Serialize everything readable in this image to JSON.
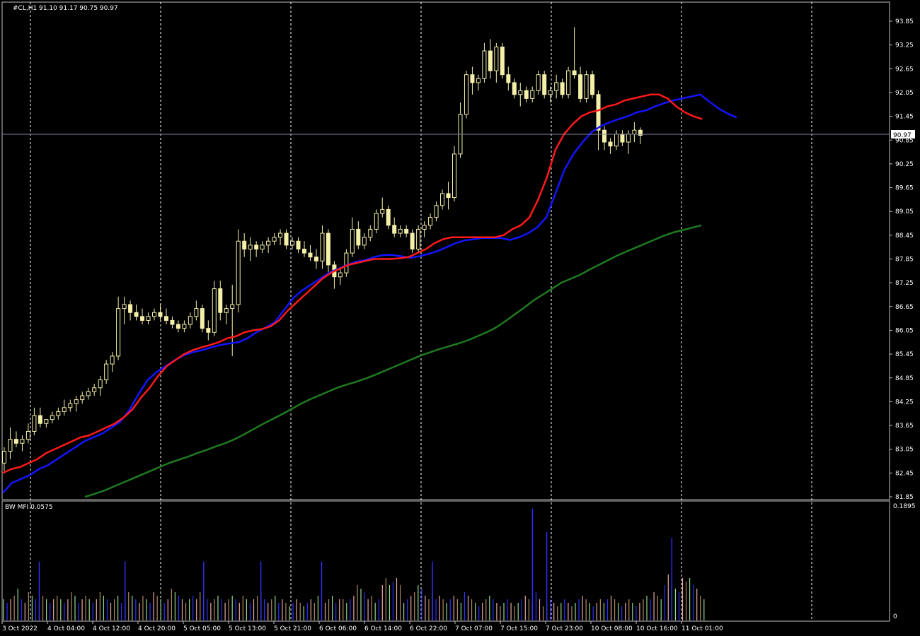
{
  "chart": {
    "header_text": "#CL,H1  91.10 91.17 90.75 90.97",
    "last_price_label": "90.97",
    "last_price": 90.97,
    "price_axis": {
      "ticks": [
        "93.85",
        "93.25",
        "92.65",
        "92.05",
        "91.45",
        "90.85",
        "90.25",
        "89.65",
        "89.05",
        "88.45",
        "87.85",
        "87.25",
        "86.65",
        "86.05",
        "85.45",
        "84.85",
        "84.25",
        "83.65",
        "83.05",
        "82.45",
        "81.85"
      ],
      "range": [
        81.85,
        93.85
      ]
    },
    "time_axis": {
      "labels": [
        "3 Oct 2022",
        "4 Oct 04:00",
        "4 Oct 12:00",
        "4 Oct 20:00",
        "5 Oct 05:00",
        "5 Oct 13:00",
        "5 Oct 21:00",
        "6 Oct 06:00",
        "6 Oct 14:00",
        "6 Oct 22:00",
        "7 Oct 07:00",
        "7 Oct 15:00",
        "7 Oct 23:00",
        "10 Oct 08:00",
        "10 Oct 16:00",
        "11 Oct 01:00"
      ]
    },
    "indicator": {
      "header_text": "BW MFI 0.0575",
      "max_label": "0.1895",
      "zero_label": "0",
      "max": 0.1895
    },
    "colors": {
      "background": "#000000",
      "candle": "#f5f0a8",
      "ma_fast": "#ff1a1a",
      "ma_mid": "#1414ff",
      "ma_slow": "#1f7a1f",
      "grid": "#ffffff",
      "axis": "#c0c0c0",
      "mfi_green": "#8fd98f",
      "mfi_blue": "#3030ff",
      "mfi_pink": "#e8a9a0",
      "mfi_brown": "#b08860"
    }
  },
  "chart_data": {
    "type": "candlestick",
    "symbol": "#CL",
    "timeframe": "H1",
    "ylim": [
      81.85,
      93.85
    ],
    "ohlc": [
      [
        82.7,
        83.1,
        82.5,
        83.0
      ],
      [
        83.0,
        83.6,
        82.8,
        83.3
      ],
      [
        83.3,
        83.5,
        83.1,
        83.2
      ],
      [
        83.2,
        83.4,
        83.0,
        83.3
      ],
      [
        83.3,
        83.7,
        83.2,
        83.5
      ],
      [
        83.5,
        84.1,
        83.4,
        83.9
      ],
      [
        83.9,
        84.1,
        83.6,
        83.7
      ],
      [
        83.7,
        83.8,
        83.6,
        83.8
      ],
      [
        83.8,
        84.0,
        83.7,
        83.9
      ],
      [
        83.9,
        84.1,
        83.8,
        84.0
      ],
      [
        84.0,
        84.3,
        83.9,
        84.1
      ],
      [
        84.1,
        84.3,
        84.0,
        84.2
      ],
      [
        84.2,
        84.4,
        84.0,
        84.3
      ],
      [
        84.3,
        84.5,
        84.2,
        84.4
      ],
      [
        84.4,
        84.6,
        84.3,
        84.5
      ],
      [
        84.5,
        84.7,
        84.4,
        84.6
      ],
      [
        84.6,
        84.9,
        84.4,
        84.8
      ],
      [
        84.8,
        85.3,
        84.7,
        85.2
      ],
      [
        85.2,
        85.5,
        85.0,
        85.4
      ],
      [
        85.4,
        86.9,
        85.3,
        86.6
      ],
      [
        86.6,
        86.9,
        86.2,
        86.7
      ],
      [
        86.7,
        86.8,
        86.3,
        86.5
      ],
      [
        86.5,
        86.7,
        86.3,
        86.4
      ],
      [
        86.4,
        86.6,
        86.2,
        86.3
      ],
      [
        86.3,
        86.5,
        86.2,
        86.4
      ],
      [
        86.4,
        86.6,
        86.3,
        86.5
      ],
      [
        86.5,
        86.7,
        86.3,
        86.4
      ],
      [
        86.4,
        86.6,
        86.2,
        86.3
      ],
      [
        86.3,
        86.4,
        86.1,
        86.2
      ],
      [
        86.2,
        86.3,
        86.0,
        86.1
      ],
      [
        86.1,
        86.3,
        86.0,
        86.2
      ],
      [
        86.2,
        86.5,
        86.1,
        86.4
      ],
      [
        86.4,
        86.8,
        86.3,
        86.6
      ],
      [
        86.6,
        86.7,
        86.0,
        86.1
      ],
      [
        86.1,
        86.3,
        85.8,
        86.0
      ],
      [
        86.0,
        87.3,
        85.9,
        87.1
      ],
      [
        87.1,
        87.3,
        86.3,
        86.5
      ],
      [
        86.5,
        86.7,
        86.2,
        86.6
      ],
      [
        86.6,
        87.2,
        85.4,
        86.7
      ],
      [
        86.7,
        88.6,
        86.5,
        88.3
      ],
      [
        88.3,
        88.5,
        87.9,
        88.1
      ],
      [
        88.1,
        88.4,
        87.8,
        88.2
      ],
      [
        88.2,
        88.3,
        87.9,
        88.1
      ],
      [
        88.1,
        88.3,
        88.0,
        88.2
      ],
      [
        88.2,
        88.4,
        88.0,
        88.3
      ],
      [
        88.3,
        88.5,
        88.2,
        88.4
      ],
      [
        88.4,
        88.6,
        88.2,
        88.5
      ],
      [
        88.5,
        88.6,
        88.1,
        88.2
      ],
      [
        88.2,
        88.4,
        88.1,
        88.3
      ],
      [
        88.3,
        88.4,
        88.0,
        88.1
      ],
      [
        88.1,
        88.3,
        87.9,
        88.0
      ],
      [
        88.0,
        88.2,
        87.8,
        87.9
      ],
      [
        87.9,
        88.1,
        87.6,
        87.8
      ],
      [
        87.8,
        88.7,
        87.6,
        88.5
      ],
      [
        88.5,
        88.6,
        87.5,
        87.7
      ],
      [
        87.7,
        87.8,
        87.1,
        87.4
      ],
      [
        87.4,
        87.6,
        87.2,
        87.5
      ],
      [
        87.5,
        88.1,
        87.4,
        88.0
      ],
      [
        88.0,
        88.9,
        87.9,
        88.6
      ],
      [
        88.6,
        88.8,
        88.1,
        88.2
      ],
      [
        88.2,
        88.5,
        88.1,
        88.4
      ],
      [
        88.4,
        88.7,
        88.3,
        88.6
      ],
      [
        88.6,
        89.1,
        88.5,
        89.0
      ],
      [
        89.0,
        89.4,
        88.9,
        89.1
      ],
      [
        89.1,
        89.2,
        88.6,
        88.7
      ],
      [
        88.7,
        88.9,
        88.4,
        88.5
      ],
      [
        88.5,
        88.7,
        88.4,
        88.6
      ],
      [
        88.6,
        88.7,
        88.4,
        88.5
      ],
      [
        88.5,
        88.6,
        88.0,
        88.1
      ],
      [
        88.1,
        88.7,
        88.0,
        88.6
      ],
      [
        88.6,
        88.8,
        88.4,
        88.7
      ],
      [
        88.7,
        89.0,
        88.6,
        88.9
      ],
      [
        88.9,
        89.3,
        88.8,
        89.2
      ],
      [
        89.2,
        89.6,
        89.1,
        89.5
      ],
      [
        89.5,
        89.8,
        89.1,
        89.4
      ],
      [
        89.4,
        90.7,
        89.3,
        90.5
      ],
      [
        90.5,
        91.8,
        90.4,
        91.5
      ],
      [
        91.5,
        92.6,
        91.4,
        92.5
      ],
      [
        92.5,
        92.7,
        92.0,
        92.3
      ],
      [
        92.3,
        92.5,
        92.1,
        92.4
      ],
      [
        92.4,
        93.3,
        92.3,
        93.1
      ],
      [
        93.1,
        93.4,
        92.4,
        92.6
      ],
      [
        92.6,
        93.3,
        92.3,
        93.2
      ],
      [
        93.2,
        93.3,
        92.4,
        92.5
      ],
      [
        92.5,
        92.7,
        92.1,
        92.3
      ],
      [
        92.3,
        92.4,
        91.9,
        92.0
      ],
      [
        92.0,
        92.3,
        91.7,
        92.1
      ],
      [
        92.1,
        92.2,
        91.8,
        91.9
      ],
      [
        91.9,
        92.2,
        91.8,
        92.1
      ],
      [
        92.1,
        92.6,
        92.0,
        92.5
      ],
      [
        92.5,
        92.6,
        91.9,
        92.0
      ],
      [
        92.0,
        92.2,
        91.8,
        92.1
      ],
      [
        92.1,
        92.5,
        91.9,
        92.3
      ],
      [
        92.3,
        92.4,
        91.9,
        92.0
      ],
      [
        92.0,
        92.7,
        91.9,
        92.6
      ],
      [
        92.6,
        93.7,
        92.4,
        92.5
      ],
      [
        92.5,
        92.7,
        91.8,
        91.9
      ],
      [
        91.9,
        92.6,
        91.8,
        92.5
      ],
      [
        92.5,
        92.6,
        91.9,
        92.0
      ],
      [
        92.0,
        92.1,
        90.6,
        91.1
      ],
      [
        91.1,
        91.2,
        90.6,
        90.8
      ],
      [
        90.8,
        90.9,
        90.5,
        90.7
      ],
      [
        90.7,
        91.1,
        90.6,
        91.0
      ],
      [
        91.0,
        91.1,
        90.7,
        90.8
      ],
      [
        90.8,
        91.1,
        90.5,
        91.0
      ],
      [
        91.0,
        91.3,
        90.8,
        91.1
      ],
      [
        91.1,
        91.17,
        90.75,
        90.97
      ]
    ],
    "ma_fast": [
      82.45,
      82.55,
      82.6,
      82.7,
      82.8,
      82.95,
      83.05,
      83.15,
      83.25,
      83.35,
      83.4,
      83.5,
      83.6,
      83.7,
      83.85,
      84.05,
      84.35,
      84.6,
      84.9,
      85.15,
      85.3,
      85.45,
      85.55,
      85.62,
      85.68,
      85.75,
      85.85,
      85.9,
      86.0,
      86.05,
      86.08,
      86.15,
      86.3,
      86.55,
      86.75,
      86.95,
      87.15,
      87.35,
      87.5,
      87.6,
      87.7,
      87.75,
      87.8,
      87.85,
      87.85,
      87.85,
      87.87,
      87.9,
      88.0,
      88.1,
      88.25,
      88.35,
      88.4,
      88.4,
      88.4,
      88.4,
      88.4,
      88.4,
      88.45,
      88.6,
      88.7,
      88.9,
      89.35,
      89.9,
      90.6,
      91.0,
      91.25,
      91.45,
      91.55,
      91.6,
      91.7,
      91.75,
      91.85,
      91.9,
      91.95,
      92.0,
      92.0,
      91.9,
      91.7,
      91.55,
      91.45,
      91.38
    ],
    "ma_mid": [
      81.95,
      82.2,
      82.3,
      82.4,
      82.55,
      82.65,
      82.8,
      82.95,
      83.1,
      83.25,
      83.35,
      83.45,
      83.6,
      83.75,
      84.05,
      84.45,
      84.8,
      85.0,
      85.15,
      85.3,
      85.42,
      85.5,
      85.55,
      85.62,
      85.68,
      85.72,
      85.75,
      85.85,
      86.0,
      86.12,
      86.25,
      86.55,
      86.85,
      87.05,
      87.2,
      87.35,
      87.5,
      87.6,
      87.7,
      87.78,
      87.82,
      87.9,
      87.95,
      87.95,
      87.92,
      87.88,
      87.92,
      87.98,
      88.05,
      88.15,
      88.25,
      88.32,
      88.35,
      88.38,
      88.38,
      88.38,
      88.33,
      88.4,
      88.5,
      88.65,
      88.9,
      89.5,
      90.1,
      90.5,
      90.8,
      91.05,
      91.2,
      91.3,
      91.38,
      91.45,
      91.55,
      91.6,
      91.7,
      91.78,
      91.85,
      91.9,
      91.95,
      92.0,
      91.82,
      91.65,
      91.52,
      91.42
    ],
    "ma_slow": [
      81.85,
      81.92,
      82.0,
      82.1,
      82.2,
      82.3,
      82.4,
      82.5,
      82.6,
      82.7,
      82.78,
      82.86,
      82.95,
      83.03,
      83.12,
      83.2,
      83.3,
      83.42,
      83.55,
      83.68,
      83.8,
      83.92,
      84.05,
      84.18,
      84.3,
      84.4,
      84.5,
      84.6,
      84.68,
      84.75,
      84.83,
      84.92,
      85.02,
      85.12,
      85.22,
      85.32,
      85.42,
      85.5,
      85.58,
      85.65,
      85.72,
      85.8,
      85.9,
      86.0,
      86.12,
      86.28,
      86.45,
      86.62,
      86.8,
      86.95,
      87.1,
      87.25,
      87.35,
      87.45,
      87.58,
      87.7,
      87.82,
      87.94,
      88.04,
      88.14,
      88.24,
      88.34,
      88.44,
      88.52,
      88.58,
      88.64,
      88.7
    ],
    "bw_mfi": [
      0.06,
      0.05,
      0.06,
      0.07,
      0.09,
      0.06,
      0.05,
      0.08,
      0.07,
      0.06,
      0.05,
      0.07,
      0.06,
      0.05,
      0.06,
      0.07,
      0.06,
      0.05,
      0.06,
      0.08,
      0.07,
      0.05,
      0.06,
      0.07,
      0.06,
      0.05,
      0.06,
      0.08,
      0.07,
      0.06,
      0.05,
      0.06,
      0.07,
      0.05,
      0.06,
      0.08,
      0.07,
      0.06,
      0.05,
      0.07,
      0.06,
      0.05,
      0.08,
      0.07,
      0.06,
      0.05,
      0.06,
      0.09,
      0.08,
      0.07,
      0.06,
      0.05,
      0.06,
      0.07,
      0.06,
      0.08,
      0.07,
      0.06,
      0.05,
      0.06,
      0.07,
      0.06,
      0.05,
      0.06,
      0.07,
      0.06,
      0.05,
      0.07,
      0.06,
      0.05,
      0.06,
      0.07,
      0.08,
      0.06,
      0.05,
      0.06,
      0.07,
      0.05,
      0.06,
      0.05,
      0.04,
      0.05,
      0.06,
      0.05,
      0.04,
      0.05,
      0.06,
      0.05,
      0.07,
      0.06,
      0.05,
      0.06,
      0.07,
      0.05,
      0.06,
      0.06,
      0.05,
      0.06,
      0.07,
      0.1,
      0.09,
      0.08,
      0.06,
      0.07,
      0.05,
      0.06,
      0.1,
      0.12,
      0.1,
      0.11,
      0.12,
      0.1,
      0.05,
      0.06,
      0.07,
      0.08,
      0.1,
      0.09,
      0.07,
      0.06,
      0.08,
      0.06,
      0.07,
      0.06,
      0.05,
      0.06,
      0.07,
      0.06,
      0.05,
      0.08,
      0.07,
      0.06,
      0.05,
      0.04,
      0.05,
      0.06,
      0.07,
      0.06,
      0.05,
      0.04,
      0.05,
      0.06,
      0.05,
      0.04,
      0.05,
      0.06,
      0.07,
      0.06,
      0.05,
      0.08,
      0.06,
      0.04,
      0.05,
      0.06,
      0.05,
      0.04,
      0.05,
      0.06,
      0.05,
      0.04,
      0.05,
      0.06,
      0.07,
      0.06,
      0.05,
      0.04,
      0.05,
      0.06,
      0.05,
      0.06,
      0.07,
      0.06,
      0.05,
      0.04,
      0.05,
      0.06,
      0.05,
      0.04,
      0.05,
      0.06,
      0.07,
      0.06,
      0.08,
      0.07,
      0.06,
      0.1,
      0.13,
      0.1,
      0.09,
      0.08,
      0.12,
      0.11,
      0.12,
      0.1,
      0.09,
      0.07,
      0.06
    ],
    "mfi_spikes": [
      [
        10,
        0.1
      ],
      [
        34,
        0.1
      ],
      [
        56,
        0.1
      ],
      [
        72,
        0.1
      ],
      [
        89,
        0.1
      ],
      [
        120,
        0.1
      ],
      [
        148,
        0.19
      ],
      [
        152,
        0.15
      ],
      [
        187,
        0.14
      ]
    ]
  }
}
